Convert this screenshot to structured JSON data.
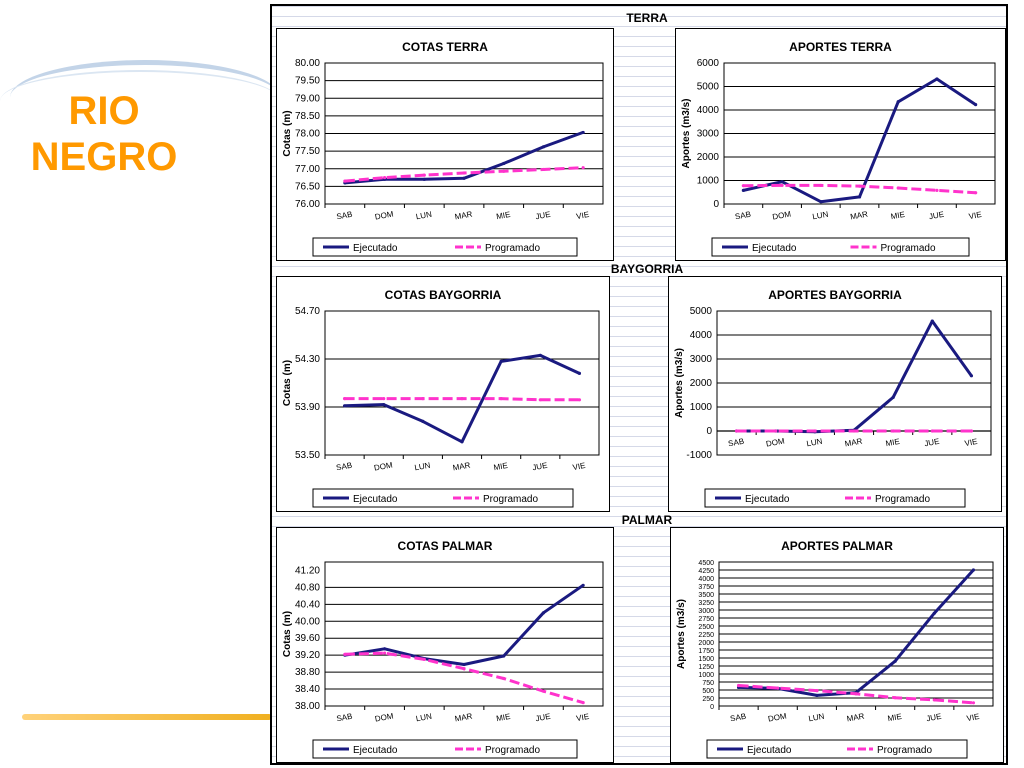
{
  "slide": {
    "title_lines": [
      "RIO",
      "NEGRO"
    ],
    "colors": {
      "title": "#ff9900",
      "ejecutado": "#1a1a80",
      "programado": "#ff33cc"
    }
  },
  "groups": [
    {
      "key": "terra",
      "label": "TERRA"
    },
    {
      "key": "baygorria",
      "label": "BAYGORRIA"
    },
    {
      "key": "palmar",
      "label": "PALMAR"
    }
  ],
  "chart_data": [
    {
      "id": "cotas-terra",
      "type": "line",
      "title": "COTAS TERRA",
      "xlabel": "",
      "ylabel": "Cotas (m)",
      "categories": [
        "SAB",
        "DOM",
        "LUN",
        "MAR",
        "MIE",
        "JUE",
        "VIE"
      ],
      "ylim": [
        76.0,
        80.0
      ],
      "yticks": [
        76.0,
        76.5,
        77.0,
        77.5,
        78.0,
        78.5,
        79.0,
        79.5,
        80.0
      ],
      "ytick_decimals": 2,
      "grid": true,
      "legend": "bottom",
      "series": [
        {
          "name": "Ejecutado",
          "values": [
            76.6,
            76.7,
            76.7,
            76.73,
            77.15,
            77.62,
            78.03
          ]
        },
        {
          "name": "Programado",
          "values": [
            76.65,
            76.75,
            76.82,
            76.88,
            76.93,
            76.98,
            77.03
          ]
        }
      ]
    },
    {
      "id": "aportes-terra",
      "type": "line",
      "title": "APORTES TERRA",
      "xlabel": "",
      "ylabel": "Aportes (m3/s)",
      "categories": [
        "SAB",
        "DOM",
        "LUN",
        "MAR",
        "MIE",
        "JUE",
        "VIE"
      ],
      "ylim": [
        0,
        6000
      ],
      "yticks": [
        0,
        1000,
        2000,
        3000,
        4000,
        5000,
        6000
      ],
      "ytick_decimals": 0,
      "grid": true,
      "legend": "bottom",
      "series": [
        {
          "name": "Ejecutado",
          "values": [
            580,
            950,
            100,
            300,
            4350,
            5320,
            4230
          ]
        },
        {
          "name": "Programado",
          "values": [
            780,
            790,
            790,
            760,
            680,
            580,
            480
          ]
        }
      ]
    },
    {
      "id": "cotas-baygorria",
      "type": "line",
      "title": "COTAS BAYGORRIA",
      "xlabel": "",
      "ylabel": "Cotas (m)",
      "categories": [
        "SAB",
        "DOM",
        "LUN",
        "MAR",
        "MIE",
        "JUE",
        "VIE"
      ],
      "ylim": [
        53.5,
        54.7
      ],
      "yticks": [
        53.5,
        53.9,
        54.3,
        54.7
      ],
      "ytick_decimals": 2,
      "grid": true,
      "legend": "bottom",
      "series": [
        {
          "name": "Ejecutado",
          "values": [
            53.91,
            53.92,
            53.78,
            53.61,
            54.28,
            54.33,
            54.18
          ]
        },
        {
          "name": "Programado",
          "values": [
            53.97,
            53.97,
            53.97,
            53.97,
            53.97,
            53.96,
            53.96
          ]
        }
      ]
    },
    {
      "id": "aportes-baygorria",
      "type": "line",
      "title": "APORTES BAYGORRIA",
      "xlabel": "",
      "ylabel": "Aportes (m3/s)",
      "categories": [
        "SAB",
        "DOM",
        "LUN",
        "MAR",
        "MIE",
        "JUE",
        "VIE"
      ],
      "ylim": [
        -1000,
        5000
      ],
      "yticks": [
        -1000,
        0,
        1000,
        2000,
        3000,
        4000,
        5000
      ],
      "ytick_decimals": 0,
      "grid": true,
      "legend": "bottom",
      "series": [
        {
          "name": "Ejecutado",
          "values": [
            0,
            0,
            -30,
            30,
            1400,
            4580,
            2300
          ]
        },
        {
          "name": "Programado",
          "values": [
            0,
            0,
            0,
            0,
            0,
            0,
            0
          ]
        }
      ]
    },
    {
      "id": "cotas-palmar",
      "type": "line",
      "title": "COTAS PALMAR",
      "xlabel": "",
      "ylabel": "Cotas (m)",
      "categories": [
        "SAB",
        "DOM",
        "LUN",
        "MAR",
        "MIE",
        "JUE",
        "VIE"
      ],
      "ylim": [
        38.0,
        41.4
      ],
      "yticks": [
        38.0,
        38.4,
        38.8,
        39.2,
        39.6,
        40.0,
        40.4,
        40.8,
        41.2
      ],
      "ytick_decimals": 2,
      "grid": true,
      "legend": "bottom",
      "series": [
        {
          "name": "Ejecutado",
          "values": [
            39.2,
            39.35,
            39.12,
            38.98,
            39.18,
            40.2,
            40.85
          ]
        },
        {
          "name": "Programado",
          "values": [
            39.22,
            39.25,
            39.1,
            38.88,
            38.65,
            38.35,
            38.08
          ]
        }
      ]
    },
    {
      "id": "aportes-palmar",
      "type": "line",
      "title": "APORTES PALMAR",
      "xlabel": "",
      "ylabel": "Aportes (m3/s)",
      "categories": [
        "SAB",
        "DOM",
        "LUN",
        "MAR",
        "MIE",
        "JUE",
        "VIE"
      ],
      "ylim": [
        0,
        4500
      ],
      "yticks": [
        0,
        250,
        500,
        750,
        1000,
        1250,
        1500,
        1750,
        2000,
        2250,
        2500,
        2750,
        3000,
        3250,
        3500,
        3750,
        4000,
        4250,
        4500
      ],
      "ytick_decimals": 0,
      "grid": true,
      "legend": "bottom",
      "series": [
        {
          "name": "Ejecutado",
          "values": [
            580,
            550,
            330,
            420,
            1400,
            2900,
            4250
          ]
        },
        {
          "name": "Programado",
          "values": [
            640,
            560,
            480,
            380,
            260,
            190,
            100
          ]
        }
      ]
    }
  ]
}
